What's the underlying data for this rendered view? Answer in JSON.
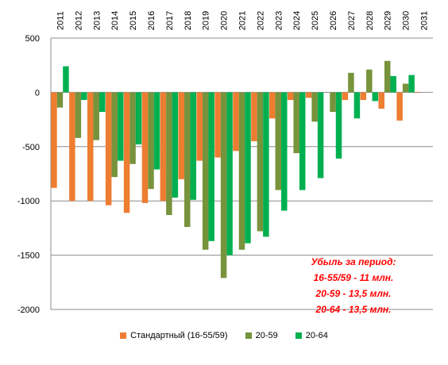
{
  "chart_data": {
    "type": "bar",
    "categories": [
      "2011",
      "2012",
      "2013",
      "2014",
      "2015",
      "2016",
      "2017",
      "2018",
      "2019",
      "2020",
      "2021",
      "2022",
      "2023",
      "2024",
      "2025",
      "2026",
      "2027",
      "2028",
      "2029",
      "2030",
      "2031"
    ],
    "series": [
      {
        "name": "Стандартный (16-55/59)",
        "color": "#ed7d31",
        "values": [
          -880,
          -1000,
          -1000,
          -1040,
          -1110,
          -1020,
          -1000,
          -800,
          -630,
          -600,
          -540,
          -450,
          -240,
          -70,
          -50,
          0,
          -70,
          -70,
          -150,
          -260,
          -5
        ]
      },
      {
        "name": "20-59",
        "color": "#77933c",
        "values": [
          -140,
          -420,
          -440,
          -780,
          -660,
          -890,
          -1130,
          -1240,
          -1450,
          -1710,
          -1450,
          -1280,
          -900,
          -560,
          -270,
          -180,
          180,
          210,
          290,
          80,
          0
        ]
      },
      {
        "name": "20-64",
        "color": "#00b050",
        "values": [
          240,
          -70,
          -180,
          -630,
          -480,
          -710,
          -970,
          -990,
          -1370,
          -1500,
          -1390,
          -1330,
          -1090,
          -900,
          -790,
          -610,
          -240,
          -80,
          150,
          160,
          0
        ]
      }
    ],
    "ylim": [
      -2000,
      500
    ],
    "yticks": [
      500,
      0,
      -500,
      -1000,
      -1500,
      -2000
    ],
    "grid": true,
    "legend_position": "bottom"
  },
  "annotation": {
    "title": "Убыль за период:",
    "lines": [
      "16-55/59 - 11 млн.",
      "20-59 - 13,5 млн.",
      "20-64 - 13,5 млн."
    ]
  }
}
